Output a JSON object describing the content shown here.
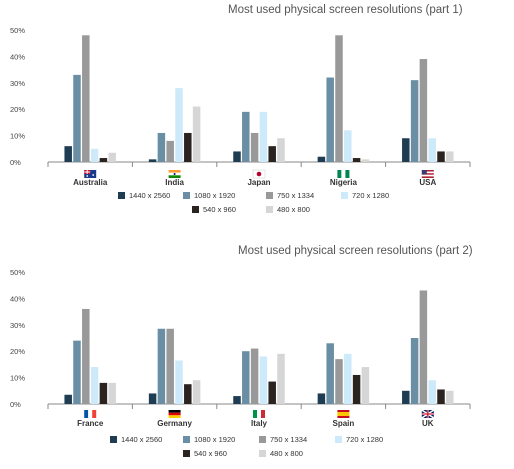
{
  "colors": {
    "1440 x 2560": "#1f3d52",
    "1080 x 1920": "#6a8ea3",
    "750 x 1334": "#999999",
    "720 x 1280": "#cdeafa",
    "540 x 960": "#2b231f",
    "480 x 800": "#d6d6d6"
  },
  "flags": [
    "australia-flag-icon",
    "india-flag-icon",
    "japan-flag-icon",
    "nigeria-flag-icon",
    "usa-flag-icon",
    "france-flag-icon",
    "germany-flag-icon",
    "italy-flag-icon",
    "spain-flag-icon",
    "uk-flag-icon"
  ],
  "chart_data": [
    {
      "type": "bar",
      "title": "Most used physical screen resolutions (part 1)",
      "categories": [
        "Australia",
        "India",
        "Japan",
        "Nigeria",
        "USA"
      ],
      "ylim": [
        0,
        50
      ],
      "yticks": [
        "0%",
        "10%",
        "20%",
        "30%",
        "40%",
        "50%"
      ],
      "grid": false,
      "legend": "bottom",
      "series": [
        {
          "name": "1440 x 2560",
          "values": [
            6,
            1,
            4,
            2,
            9
          ]
        },
        {
          "name": "1080 x 1920",
          "values": [
            33,
            11,
            19,
            32,
            31
          ]
        },
        {
          "name": "750 x 1334",
          "values": [
            48,
            8,
            11,
            48,
            39
          ]
        },
        {
          "name": "720 x 1280",
          "values": [
            5,
            28,
            19,
            12,
            9
          ]
        },
        {
          "name": "540 x 960",
          "values": [
            1.5,
            11,
            6,
            1.5,
            4
          ]
        },
        {
          "name": "480 x 800",
          "values": [
            3.5,
            21,
            9,
            1,
            4
          ]
        }
      ]
    },
    {
      "type": "bar",
      "title": "Most used physical screen resolutions (part 2)",
      "categories": [
        "France",
        "Germany",
        "Italy",
        "Spain",
        "UK"
      ],
      "ylim": [
        0,
        50
      ],
      "yticks": [
        "0%",
        "10%",
        "20%",
        "30%",
        "40%",
        "50%"
      ],
      "grid": false,
      "legend": "bottom",
      "series": [
        {
          "name": "1440 x 2560",
          "values": [
            3.5,
            4,
            3,
            4,
            5
          ]
        },
        {
          "name": "1080 x 1920",
          "values": [
            24,
            28.5,
            20,
            23,
            25
          ]
        },
        {
          "name": "750 x 1334",
          "values": [
            36,
            28.5,
            21,
            17,
            43
          ]
        },
        {
          "name": "720 x 1280",
          "values": [
            14,
            16.5,
            18,
            19,
            9
          ]
        },
        {
          "name": "540 x 960",
          "values": [
            8,
            7.5,
            8.5,
            11,
            5.5
          ]
        },
        {
          "name": "480 x 800",
          "values": [
            8,
            9,
            19,
            14,
            5
          ]
        }
      ]
    }
  ]
}
